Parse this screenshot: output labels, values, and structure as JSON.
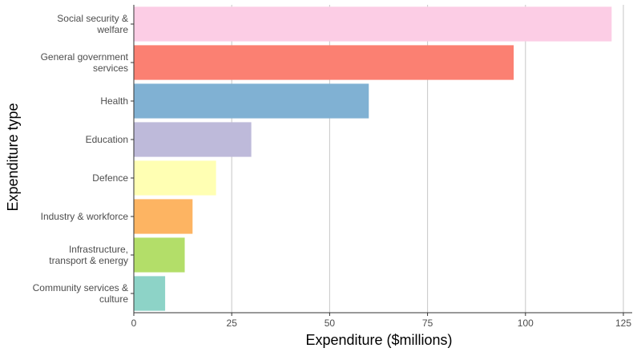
{
  "chart_data": {
    "type": "bar",
    "orientation": "horizontal",
    "title": "",
    "xlabel": "Expenditure ($millions)",
    "ylabel": "Expenditure type",
    "xlim": [
      0,
      125
    ],
    "xticks": [
      "0",
      "25",
      "50",
      "75",
      "100",
      "125"
    ],
    "grid": "vertical-major",
    "categories": [
      {
        "label": [
          "Social security &",
          "welfare"
        ],
        "value": 122,
        "color": "#fccde5"
      },
      {
        "label": [
          "General government",
          "services"
        ],
        "value": 97,
        "color": "#fb8072"
      },
      {
        "label": [
          "Health"
        ],
        "value": 60,
        "color": "#80b1d3"
      },
      {
        "label": [
          "Education"
        ],
        "value": 30,
        "color": "#bebada"
      },
      {
        "label": [
          "Defence"
        ],
        "value": 21,
        "color": "#ffffb3"
      },
      {
        "label": [
          "Industry & workforce"
        ],
        "value": 15,
        "color": "#fdb462"
      },
      {
        "label": [
          "Infrastructure,",
          "transport & energy"
        ],
        "value": 13,
        "color": "#b3de69"
      },
      {
        "label": [
          "Community services &",
          "culture"
        ],
        "value": 8,
        "color": "#8dd3c7"
      }
    ]
  }
}
